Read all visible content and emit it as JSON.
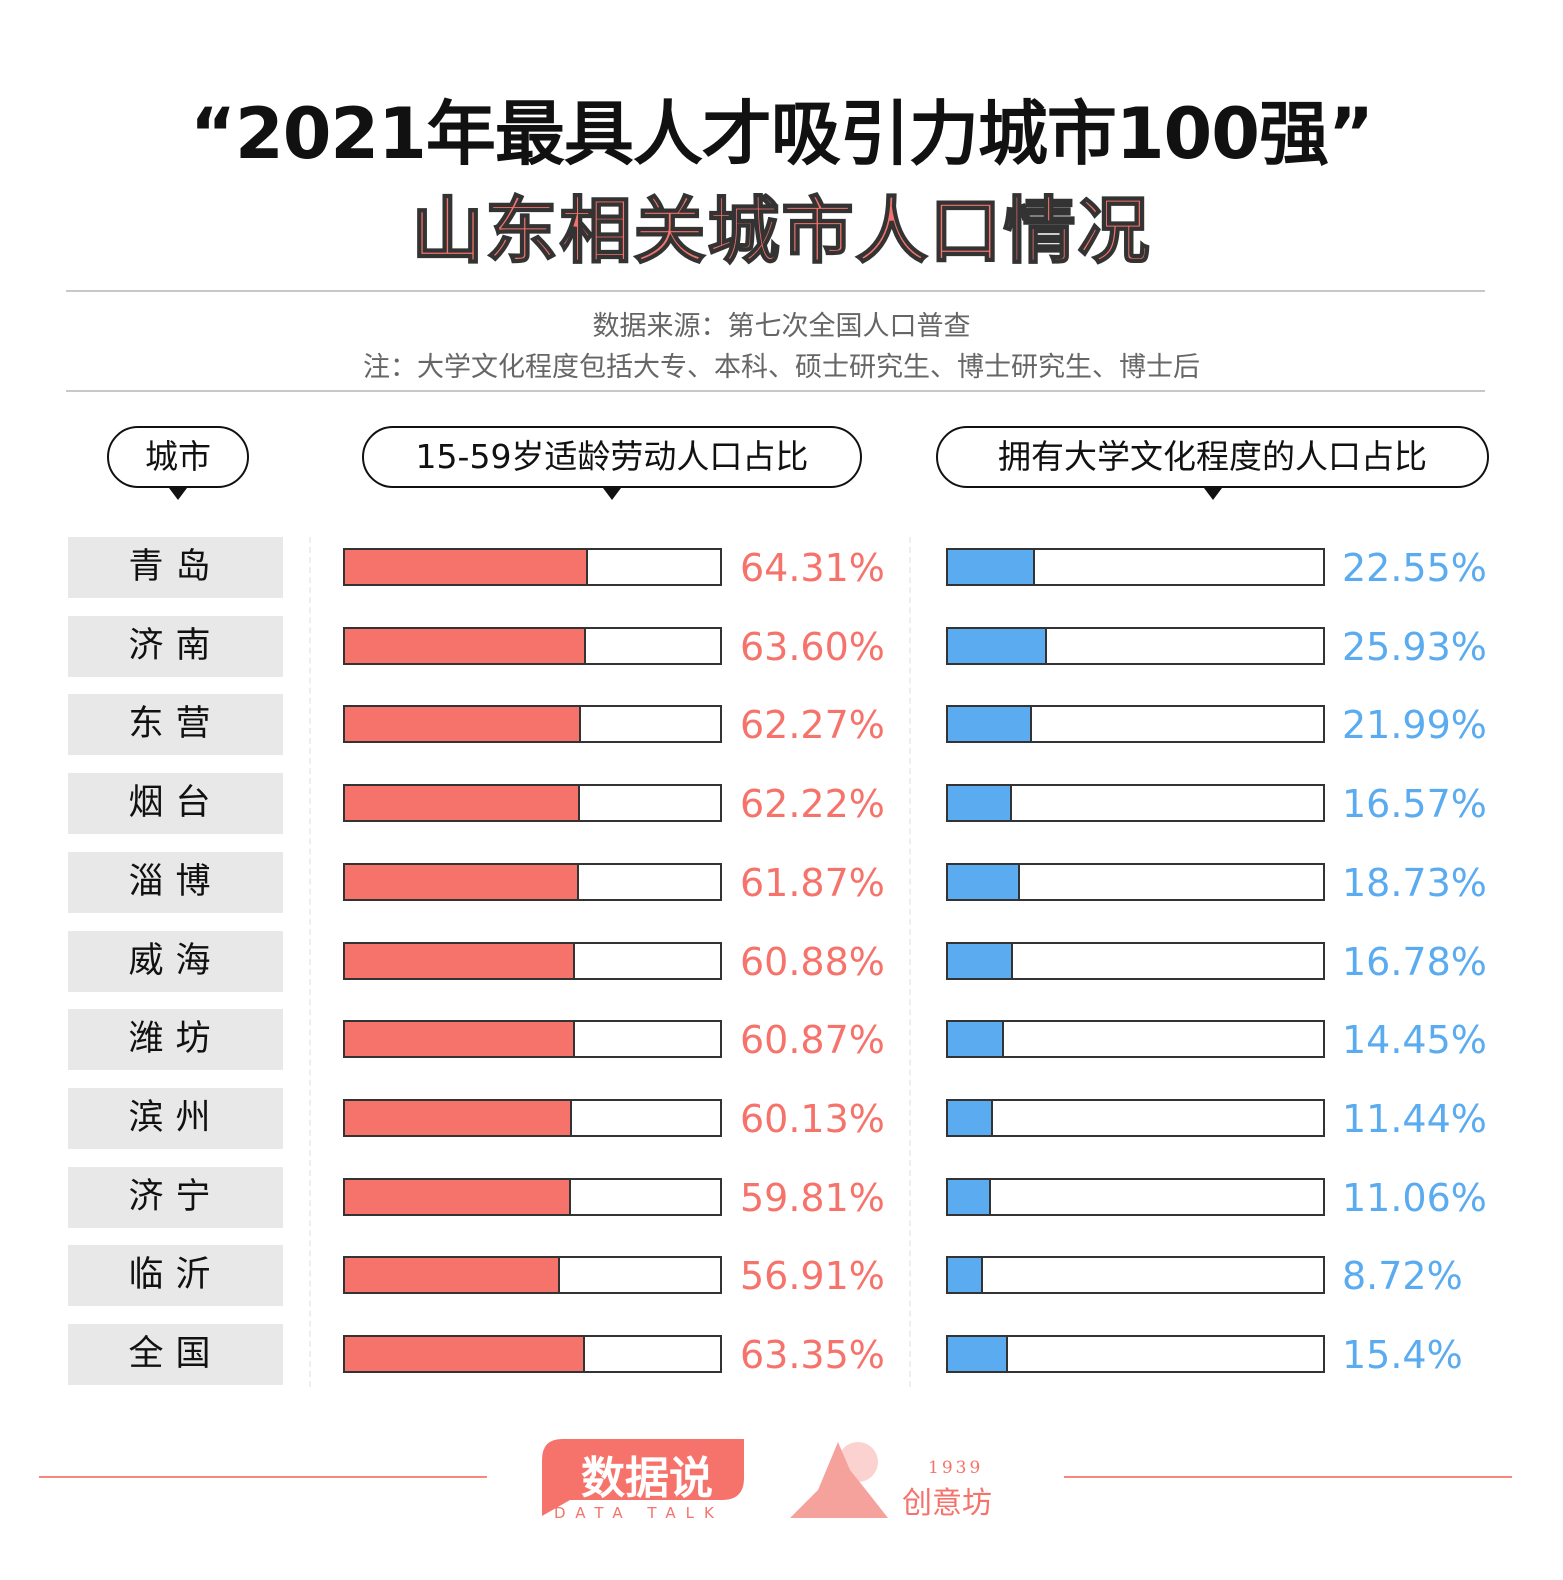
{
  "chart_data": {
    "type": "bar",
    "title": "“2021年最具人才吸引力城市100强”",
    "subtitle": "山东相关城市人口情况",
    "source": "数据来源：第七次全国人口普查",
    "note": "注：大学文化程度包括大专、本科、硕士研究生、博士研究生、博士后",
    "category_header": "城市",
    "categories": [
      "青岛",
      "济南",
      "东营",
      "烟台",
      "淄博",
      "威海",
      "潍坊",
      "滨州",
      "济宁",
      "临沂",
      "全国"
    ],
    "xlim": [
      0,
      100
    ],
    "series": [
      {
        "name": "15-59岁适龄劳动人口占比",
        "color": "#f6736c",
        "values": [
          64.31,
          63.6,
          62.27,
          62.22,
          61.87,
          60.88,
          60.87,
          60.13,
          59.81,
          56.91,
          63.35
        ],
        "labels": [
          "64.31%",
          "63.60%",
          "62.27%",
          "62.22%",
          "61.87%",
          "60.88%",
          "60.87%",
          "60.13%",
          "59.81%",
          "56.91%",
          "63.35%"
        ]
      },
      {
        "name": "拥有大学文化程度的人口占比",
        "color": "#5aabf0",
        "values": [
          22.55,
          25.93,
          21.99,
          16.57,
          18.73,
          16.78,
          14.45,
          11.44,
          11.06,
          8.72,
          15.4
        ],
        "labels": [
          "22.55%",
          "25.93%",
          "21.99%",
          "16.57%",
          "18.73%",
          "16.78%",
          "14.45%",
          "11.44%",
          "11.06%",
          "8.72%",
          "15.4%"
        ]
      }
    ]
  },
  "colors": {
    "title_red": "#f4736b",
    "red_bar": "#f6736c",
    "blue_bar": "#5aabf0",
    "footer": "#f6877f"
  },
  "footer": {
    "logo_left": "数据说",
    "logo_left_sub": "DATA TALK",
    "logo_right": "创意坊",
    "logo_right_year": "1939"
  }
}
